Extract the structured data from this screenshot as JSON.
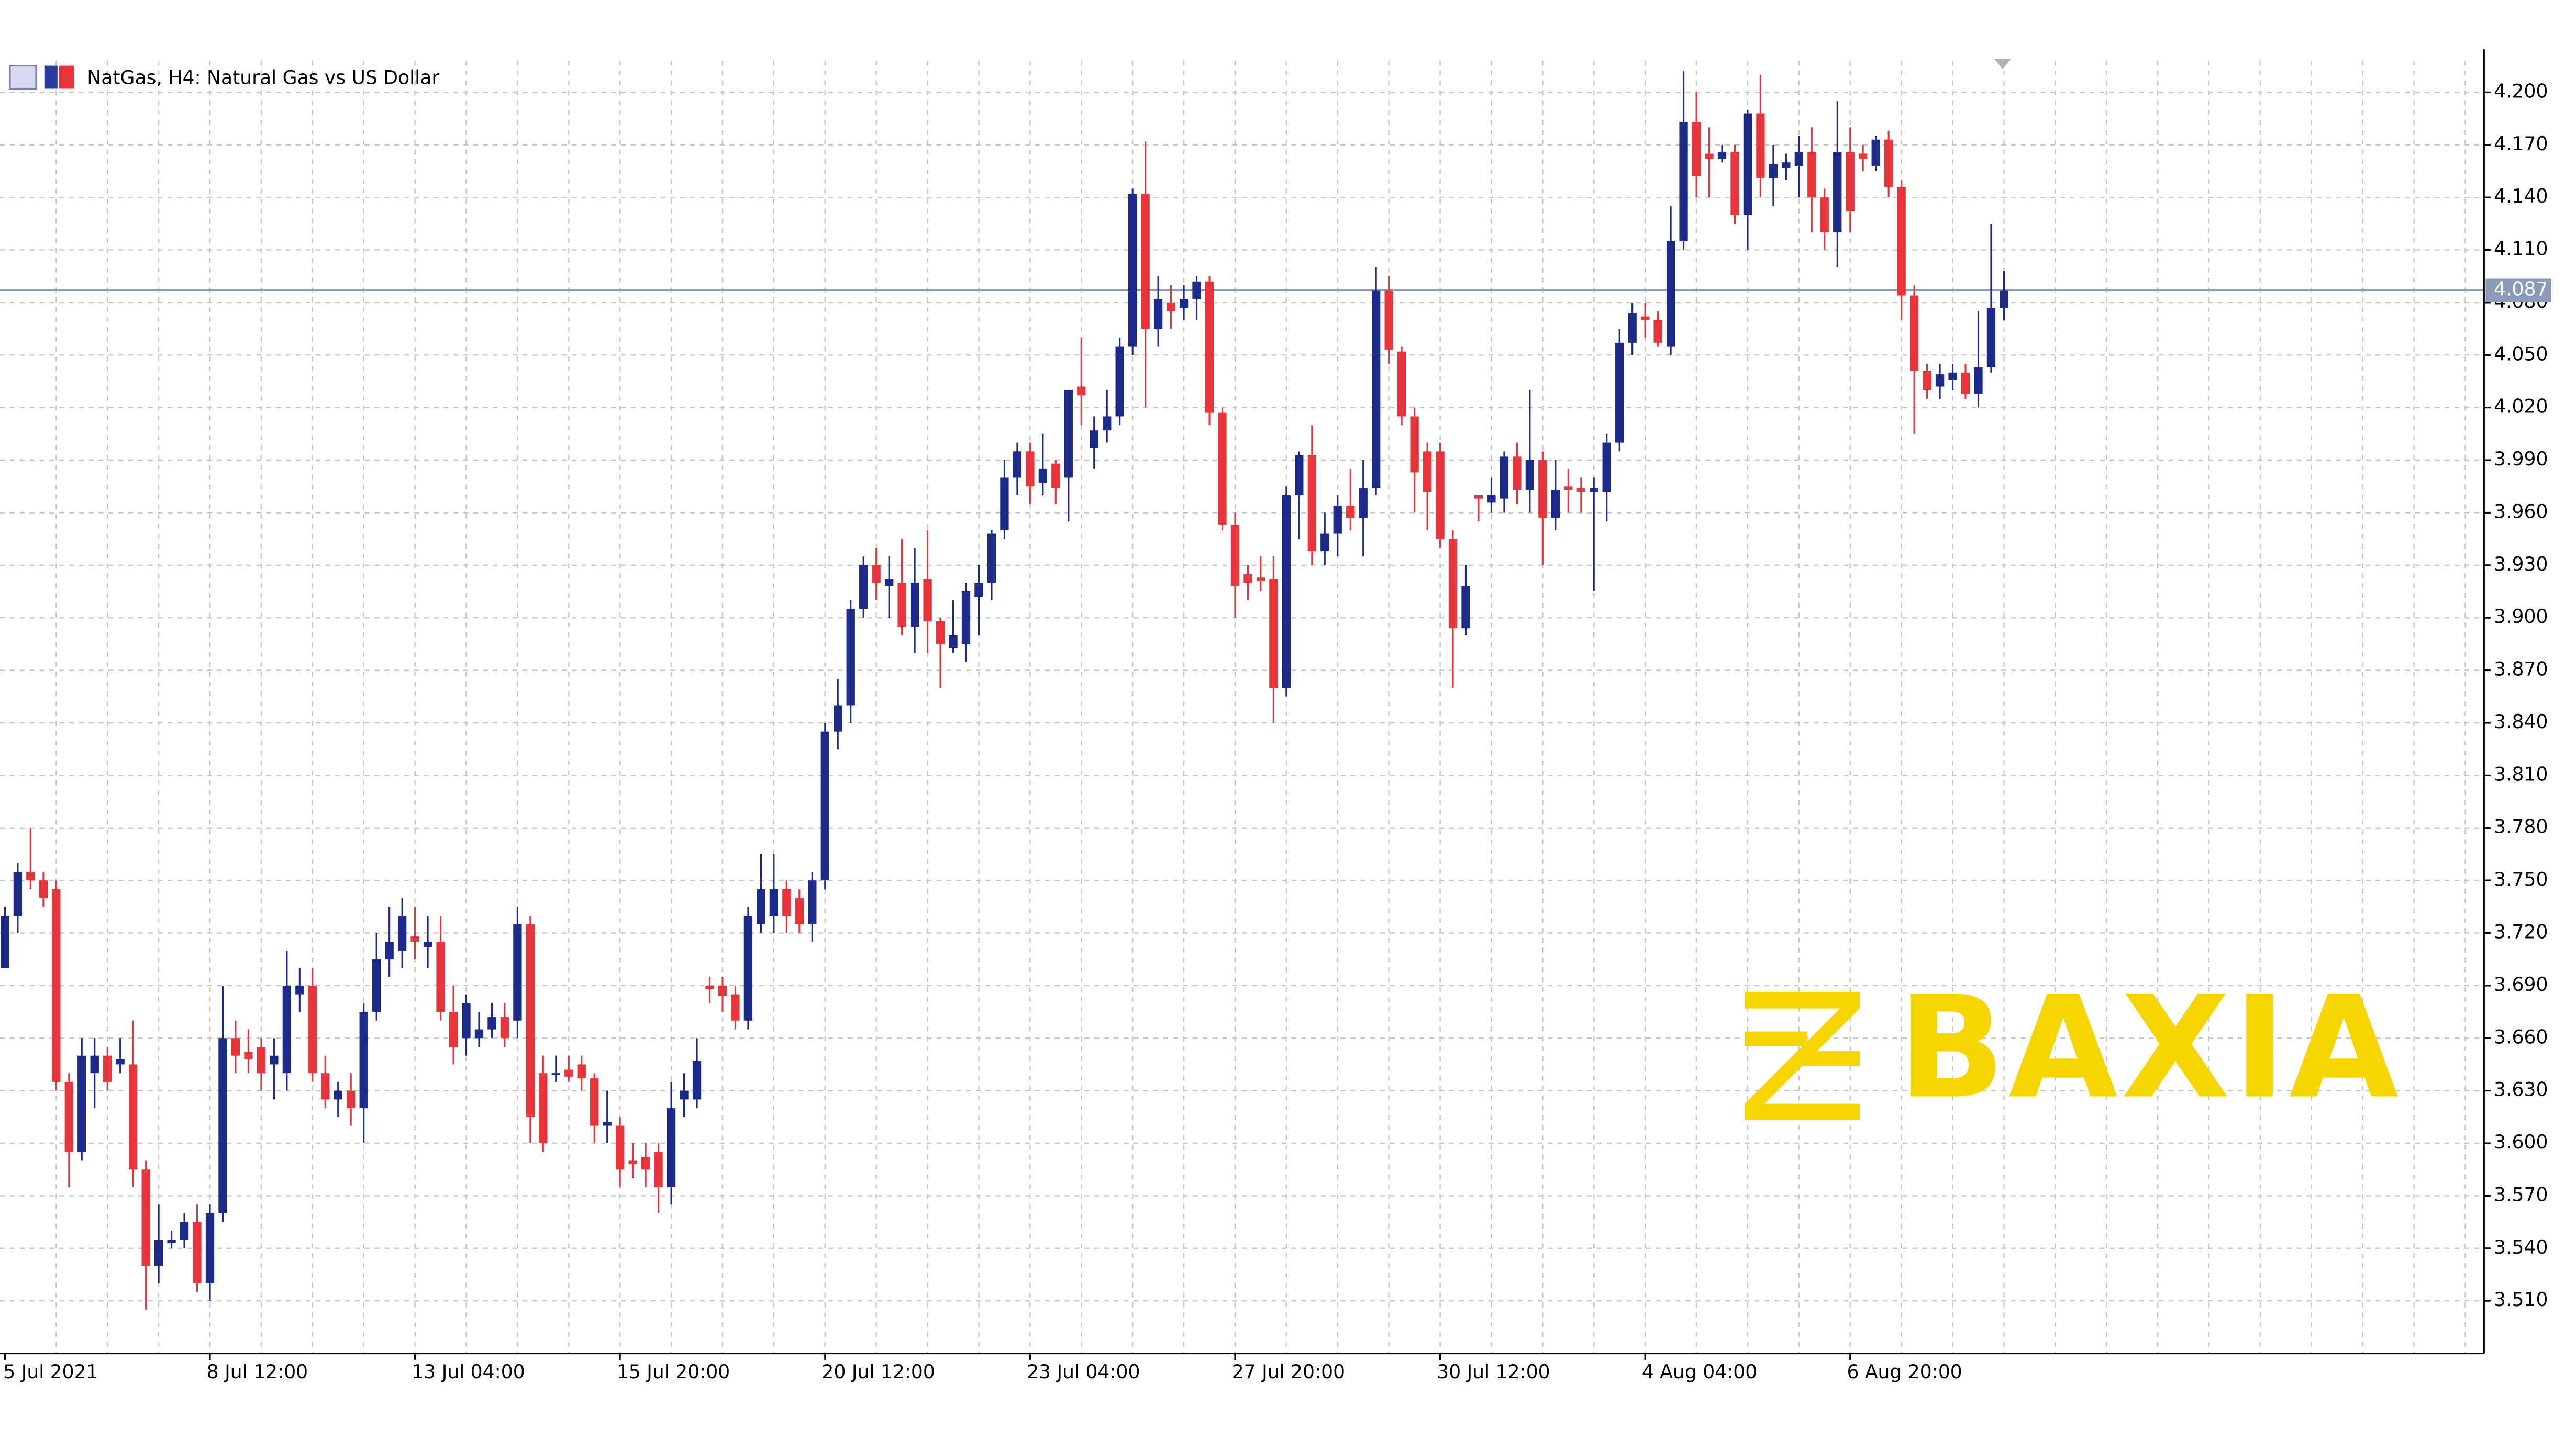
{
  "chart_data": {
    "type": "candlestick",
    "title": "NatGas, H4:  Natural Gas vs US Dollar",
    "watermark": "BAXIA",
    "up_color": "#1c2a8a",
    "down_color": "#e8343b",
    "grid": true,
    "categories": [
      "5 Jul 2021",
      null,
      null,
      null,
      null,
      null,
      null,
      null,
      null,
      null,
      null,
      null,
      null,
      null,
      null,
      null,
      "8 Jul 12:00",
      null,
      null,
      null,
      null,
      null,
      null,
      null,
      null,
      null,
      null,
      null,
      null,
      null,
      null,
      null,
      "13 Jul 04:00",
      null,
      null,
      null,
      null,
      null,
      null,
      null,
      null,
      null,
      null,
      null,
      null,
      null,
      null,
      null,
      "15 Jul 20:00",
      null,
      null,
      null,
      null,
      null,
      null,
      null,
      null,
      null,
      null,
      null,
      null,
      null,
      null,
      null,
      "20 Jul 12:00",
      null,
      null,
      null,
      null,
      null,
      null,
      null,
      null,
      null,
      null,
      null,
      null,
      null,
      null,
      null,
      "23 Jul 04:00",
      null,
      null,
      null,
      null,
      null,
      null,
      null,
      null,
      null,
      null,
      null,
      null,
      null,
      null,
      null,
      "27 Jul 20:00",
      null,
      null,
      null,
      null,
      null,
      null,
      null,
      null,
      null,
      null,
      null,
      null,
      null,
      null,
      null,
      "30 Jul 12:00",
      null,
      null,
      null,
      null,
      null,
      null,
      null,
      null,
      null,
      null,
      null,
      null,
      null,
      null,
      null,
      "4 Aug 04:00",
      null,
      null,
      null,
      null,
      null,
      null,
      null,
      null,
      null,
      null,
      null,
      null,
      null,
      null,
      null,
      "6 Aug 20:00",
      null,
      null,
      null,
      null,
      null,
      null,
      null,
      null,
      null,
      null,
      null,
      null
    ],
    "open": [
      3.7,
      3.73,
      3.755,
      3.75,
      3.745,
      3.635,
      3.595,
      3.64,
      3.65,
      3.645,
      3.645,
      3.585,
      3.53,
      3.543,
      3.545,
      3.555,
      3.52,
      3.56,
      3.66,
      3.652,
      3.655,
      3.645,
      3.64,
      3.685,
      3.69,
      3.64,
      3.625,
      3.63,
      3.62,
      3.675,
      3.705,
      3.71,
      3.718,
      3.712,
      3.715,
      3.675,
      3.66,
      3.66,
      3.665,
      3.672,
      3.67,
      3.725,
      3.64,
      3.64,
      3.642,
      3.645,
      3.637,
      3.61,
      3.61,
      3.59,
      3.592,
      3.595,
      3.575,
      3.625,
      3.625,
      3.69,
      3.69,
      3.685,
      3.67,
      3.725,
      3.73,
      3.745,
      3.74,
      3.725,
      3.75,
      3.835,
      3.85,
      3.905,
      3.93,
      3.918,
      3.92,
      3.895,
      3.922,
      3.898,
      3.883,
      3.885,
      3.912,
      3.92,
      3.95,
      3.98,
      3.995,
      3.977,
      3.988,
      3.98,
      4.032,
      3.997,
      4.007,
      4.015,
      4.055,
      4.142,
      4.065,
      4.08,
      4.077,
      4.082,
      4.092,
      4.017,
      3.953,
      3.925,
      3.923,
      3.922,
      3.86,
      3.97,
      3.993,
      3.938,
      3.948,
      3.964,
      3.957,
      3.974,
      4.087,
      4.052,
      4.015,
      3.995,
      3.995,
      3.945,
      3.894,
      3.97,
      3.966,
      3.968,
      3.992,
      3.973,
      3.99,
      3.957,
      3.975,
      3.974,
      3.972,
      3.972,
      4.0,
      4.057,
      4.072,
      4.07,
      4.055,
      4.115,
      4.183,
      4.165,
      4.162,
      4.166,
      4.13,
      4.188,
      4.151,
      4.157,
      4.158,
      4.166,
      4.14,
      4.12,
      4.166,
      4.165,
      4.158,
      4.173,
      4.146,
      4.084,
      4.041,
      4.032,
      4.036,
      4.04,
      4.028,
      4.043,
      4.077
    ],
    "high": [
      3.735,
      3.76,
      3.78,
      3.755,
      3.75,
      3.64,
      3.66,
      3.66,
      3.655,
      3.66,
      3.67,
      3.59,
      3.565,
      3.55,
      3.56,
      3.565,
      3.565,
      3.69,
      3.67,
      3.665,
      3.66,
      3.66,
      3.71,
      3.7,
      3.7,
      3.65,
      3.635,
      3.64,
      3.68,
      3.72,
      3.735,
      3.74,
      3.735,
      3.73,
      3.73,
      3.69,
      3.685,
      3.675,
      3.68,
      3.68,
      3.735,
      3.73,
      3.65,
      3.65,
      3.65,
      3.65,
      3.64,
      3.63,
      3.615,
      3.6,
      3.6,
      3.6,
      3.635,
      3.64,
      3.66,
      3.695,
      3.695,
      3.69,
      3.735,
      3.765,
      3.765,
      3.75,
      3.745,
      3.755,
      3.84,
      3.865,
      3.91,
      3.935,
      3.94,
      3.935,
      3.945,
      3.94,
      3.95,
      3.9,
      3.91,
      3.92,
      3.93,
      3.95,
      3.99,
      4.0,
      4.0,
      4.005,
      3.99,
      4.03,
      4.06,
      4.015,
      4.03,
      4.06,
      4.145,
      4.172,
      4.095,
      4.09,
      4.09,
      4.095,
      4.095,
      4.02,
      3.96,
      3.93,
      3.935,
      3.935,
      3.975,
      3.995,
      4.01,
      3.96,
      3.97,
      3.985,
      3.99,
      4.1,
      4.095,
      4.055,
      4.02,
      4.0,
      4.0,
      3.95,
      3.93,
      3.97,
      3.98,
      3.995,
      4.0,
      4.03,
      3.995,
      3.99,
      3.985,
      3.98,
      3.98,
      4.005,
      4.065,
      4.08,
      4.08,
      4.075,
      4.135,
      4.212,
      4.2,
      4.18,
      4.17,
      4.17,
      4.19,
      4.21,
      4.17,
      4.165,
      4.175,
      4.18,
      4.145,
      4.195,
      4.18,
      4.17,
      4.175,
      4.178,
      4.15,
      4.09,
      4.045,
      4.045,
      4.045,
      4.045,
      4.075,
      4.125,
      4.098
    ],
    "low": [
      3.7,
      3.72,
      3.745,
      3.735,
      3.63,
      3.575,
      3.59,
      3.62,
      3.63,
      3.64,
      3.575,
      3.505,
      3.52,
      3.54,
      3.54,
      3.515,
      3.51,
      3.555,
      3.64,
      3.64,
      3.63,
      3.625,
      3.63,
      3.675,
      3.635,
      3.62,
      3.615,
      3.61,
      3.6,
      3.67,
      3.695,
      3.7,
      3.705,
      3.7,
      3.67,
      3.645,
      3.65,
      3.655,
      3.66,
      3.655,
      3.66,
      3.6,
      3.595,
      3.635,
      3.635,
      3.63,
      3.6,
      3.6,
      3.575,
      3.58,
      3.575,
      3.56,
      3.565,
      3.615,
      3.62,
      3.68,
      3.675,
      3.665,
      3.665,
      3.72,
      3.72,
      3.72,
      3.72,
      3.715,
      3.745,
      3.825,
      3.84,
      3.9,
      3.91,
      3.9,
      3.89,
      3.88,
      3.88,
      3.86,
      3.88,
      3.875,
      3.89,
      3.91,
      3.945,
      3.97,
      3.965,
      3.97,
      3.965,
      3.955,
      4.01,
      3.985,
      4.0,
      4.01,
      4.05,
      4.02,
      4.055,
      4.065,
      4.07,
      4.07,
      4.01,
      3.95,
      3.9,
      3.91,
      3.915,
      3.84,
      3.855,
      3.945,
      3.93,
      3.93,
      3.935,
      3.95,
      3.935,
      3.97,
      4.045,
      4.01,
      3.96,
      3.95,
      3.94,
      3.86,
      3.89,
      3.955,
      3.96,
      3.96,
      3.965,
      3.96,
      3.93,
      3.95,
      3.96,
      3.96,
      3.915,
      3.955,
      3.995,
      4.05,
      4.06,
      4.055,
      4.05,
      4.11,
      4.14,
      4.14,
      4.16,
      4.125,
      4.11,
      4.14,
      4.135,
      4.15,
      4.14,
      4.12,
      4.11,
      4.1,
      4.12,
      4.155,
      4.155,
      4.14,
      4.07,
      4.005,
      4.025,
      4.025,
      4.03,
      4.025,
      4.02,
      4.04,
      4.07
    ],
    "close": [
      3.73,
      3.755,
      3.75,
      3.74,
      3.635,
      3.595,
      3.65,
      3.65,
      3.635,
      3.648,
      3.585,
      3.53,
      3.545,
      3.545,
      3.555,
      3.52,
      3.56,
      3.66,
      3.65,
      3.648,
      3.64,
      3.65,
      3.69,
      3.69,
      3.64,
      3.625,
      3.63,
      3.62,
      3.675,
      3.705,
      3.715,
      3.73,
      3.715,
      3.715,
      3.675,
      3.655,
      3.68,
      3.665,
      3.672,
      3.66,
      3.725,
      3.615,
      3.6,
      3.64,
      3.638,
      3.637,
      3.61,
      3.612,
      3.585,
      3.588,
      3.585,
      3.575,
      3.62,
      3.63,
      3.647,
      3.688,
      3.684,
      3.67,
      3.73,
      3.745,
      3.745,
      3.73,
      3.725,
      3.75,
      3.835,
      3.85,
      3.905,
      3.93,
      3.92,
      3.922,
      3.895,
      3.92,
      3.898,
      3.885,
      3.89,
      3.915,
      3.92,
      3.948,
      3.98,
      3.995,
      3.975,
      3.985,
      3.974,
      4.03,
      4.027,
      4.007,
      4.015,
      4.055,
      4.142,
      4.065,
      4.082,
      4.075,
      4.082,
      4.092,
      4.017,
      3.953,
      3.918,
      3.92,
      3.921,
      3.86,
      3.97,
      3.993,
      3.938,
      3.948,
      3.964,
      3.957,
      3.974,
      4.087,
      4.053,
      4.015,
      3.983,
      3.972,
      3.945,
      3.894,
      3.918,
      3.968,
      3.97,
      3.992,
      3.973,
      3.99,
      3.957,
      3.973,
      3.973,
      3.972,
      3.974,
      4.0,
      4.057,
      4.074,
      4.07,
      4.057,
      4.115,
      4.183,
      4.152,
      4.162,
      4.166,
      4.13,
      4.188,
      4.151,
      4.159,
      4.16,
      4.166,
      4.14,
      4.12,
      4.166,
      4.132,
      4.162,
      4.173,
      4.146,
      4.084,
      4.041,
      4.03,
      4.039,
      4.04,
      4.028,
      4.043,
      4.077,
      4.087
    ],
    "current_price": {
      "value": 4.087,
      "label": "4.087"
    },
    "current_price_color": "#8c9cb8",
    "ylim": [
      3.48,
      4.218
    ],
    "yticks": [
      {
        "value": 4.2,
        "label": "4.200"
      },
      {
        "value": 4.17,
        "label": "4.170"
      },
      {
        "value": 4.14,
        "label": "4.140"
      },
      {
        "value": 4.11,
        "label": "4.110"
      },
      {
        "value": 4.08,
        "label": "4.080"
      },
      {
        "value": 4.05,
        "label": "4.050"
      },
      {
        "value": 4.02,
        "label": "4.020"
      },
      {
        "value": 3.99,
        "label": "3.990"
      },
      {
        "value": 3.96,
        "label": "3.960"
      },
      {
        "value": 3.93,
        "label": "3.930"
      },
      {
        "value": 3.9,
        "label": "3.900"
      },
      {
        "value": 3.87,
        "label": "3.870"
      },
      {
        "value": 3.84,
        "label": "3.840"
      },
      {
        "value": 3.81,
        "label": "3.810"
      },
      {
        "value": 3.78,
        "label": "3.780"
      },
      {
        "value": 3.75,
        "label": "3.750"
      },
      {
        "value": 3.72,
        "label": "3.720"
      },
      {
        "value": 3.69,
        "label": "3.690"
      },
      {
        "value": 3.66,
        "label": "3.660"
      },
      {
        "value": 3.63,
        "label": "3.630"
      },
      {
        "value": 3.6,
        "label": "3.600"
      },
      {
        "value": 3.57,
        "label": "3.570"
      },
      {
        "value": 3.54,
        "label": "3.540"
      },
      {
        "value": 3.51,
        "label": "3.510"
      }
    ]
  }
}
